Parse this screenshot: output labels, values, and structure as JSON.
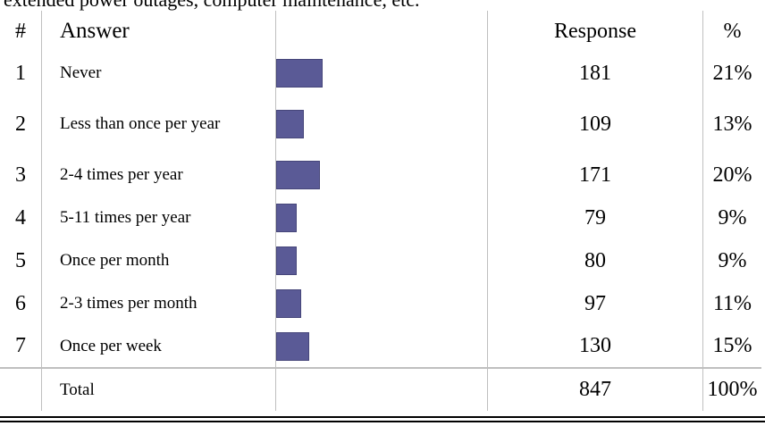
{
  "caption": "extended power outages, computer maintenance, etc.",
  "table": {
    "headers": {
      "num": "#",
      "answer": "Answer",
      "bar": "",
      "response": "Response",
      "percent": "%"
    },
    "rows": [
      {
        "num": "1",
        "answer": "Never",
        "response": "181",
        "percent": "21%"
      },
      {
        "num": "2",
        "answer": "Less than once per year",
        "response": "109",
        "percent": "13%"
      },
      {
        "num": "3",
        "answer": "2-4 times per year",
        "response": "171",
        "percent": "20%"
      },
      {
        "num": "4",
        "answer": "5-11 times per year",
        "response": "79",
        "percent": "9%"
      },
      {
        "num": "5",
        "answer": "Once per month",
        "response": "80",
        "percent": "9%"
      },
      {
        "num": "6",
        "answer": "2-3 times per month",
        "response": "97",
        "percent": "11%"
      },
      {
        "num": "7",
        "answer": "Once per week",
        "response": "130",
        "percent": "15%"
      }
    ],
    "total": {
      "label": "Total",
      "response": "847",
      "percent": "100%"
    }
  },
  "chart_data": {
    "type": "bar",
    "categories": [
      "Never",
      "Less than once per year",
      "2-4 times per year",
      "5-11 times per year",
      "Once per month",
      "2-3 times per month",
      "Once per week"
    ],
    "values": [
      181,
      109,
      171,
      79,
      80,
      97,
      130
    ],
    "percentages": [
      21,
      13,
      20,
      9,
      9,
      11,
      15
    ],
    "title": "",
    "xlabel": "",
    "ylabel": "",
    "bar_color": "#5a5a96"
  }
}
